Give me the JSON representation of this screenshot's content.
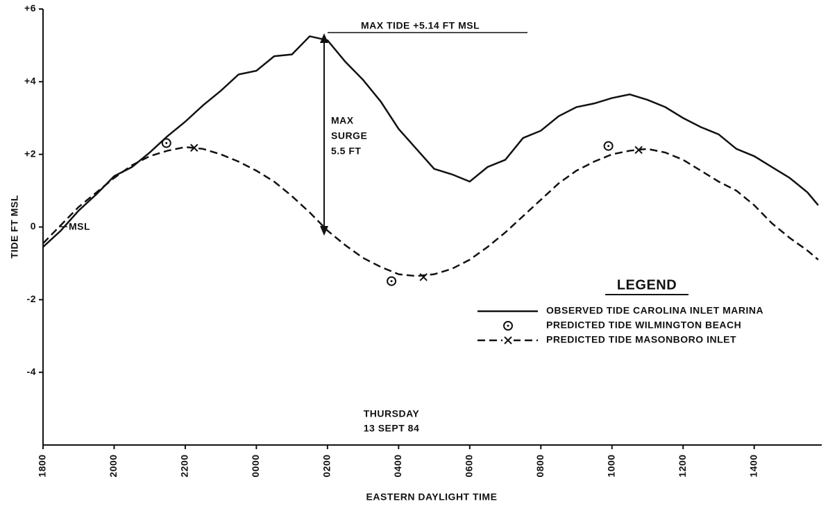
{
  "chart_data": {
    "type": "line",
    "xlabel": "EASTERN DAYLIGHT TIME",
    "ylabel": "TIDE FT MSL",
    "xlim": [
      0,
      21.9
    ],
    "ylim": [
      -6,
      6
    ],
    "xticks": [
      {
        "value": 0,
        "label": "1800"
      },
      {
        "value": 2,
        "label": "2000"
      },
      {
        "value": 4,
        "label": "2200"
      },
      {
        "value": 6,
        "label": "0000"
      },
      {
        "value": 8,
        "label": "0200"
      },
      {
        "value": 10,
        "label": "0400"
      },
      {
        "value": 12,
        "label": "0600"
      },
      {
        "value": 14,
        "label": "0800"
      },
      {
        "value": 16,
        "label": "1000"
      },
      {
        "value": 18,
        "label": "1200"
      },
      {
        "value": 20,
        "label": "1400"
      }
    ],
    "yticks": [
      -4,
      -2,
      0,
      {
        "value": 2,
        "label": "+2"
      },
      {
        "value": 4,
        "label": "+4"
      },
      {
        "value": 6,
        "label": "+6"
      }
    ],
    "annotations": {
      "max_tide": "MAX  TIDE +5.14 FT MSL",
      "surge_1": "MAX",
      "surge_2": "SURGE",
      "surge_3": "5.5 FT",
      "msl": "MSL",
      "day": "THURSDAY",
      "date": "13 SEPT 84"
    },
    "legend_title": "LEGEND",
    "series": [
      {
        "name": "OBSERVED TIDE CAROLINA INLET MARINA",
        "color": "#111",
        "style": "solid",
        "x": [
          0,
          0.5,
          1,
          1.5,
          2,
          2.5,
          3,
          3.5,
          4,
          4.5,
          5,
          5.5,
          6,
          6.5,
          7,
          7.5,
          8,
          8.5,
          9,
          9.5,
          10,
          10.5,
          11,
          11.5,
          12,
          12.5,
          13,
          13.5,
          14,
          14.5,
          15,
          15.5,
          16,
          16.5,
          17,
          17.5,
          18,
          18.5,
          19,
          19.5,
          20,
          20.5,
          21,
          21.5,
          21.8
        ],
        "values": [
          -0.55,
          -0.1,
          0.45,
          0.9,
          1.4,
          1.65,
          2.05,
          2.5,
          2.9,
          3.35,
          3.75,
          4.2,
          4.3,
          4.7,
          4.75,
          5.25,
          5.14,
          4.55,
          4.05,
          3.45,
          2.7,
          2.15,
          1.6,
          1.45,
          1.25,
          1.65,
          1.85,
          2.45,
          2.65,
          3.05,
          3.3,
          3.4,
          3.55,
          3.65,
          3.5,
          3.3,
          3.0,
          2.75,
          2.55,
          2.15,
          1.95,
          1.65,
          1.35,
          0.95,
          0.6
        ]
      },
      {
        "name": "PREDICTED TIDE WILMINGTON BEACH",
        "color": "#111",
        "style": "circles",
        "x": [
          3.47,
          9.8,
          15.9
        ],
        "values": [
          2.31,
          -1.49,
          2.23
        ]
      },
      {
        "name": "PREDICTED TIDE MASONBORO INLET",
        "color": "#111",
        "style": "dashed",
        "x": [
          0,
          0.5,
          1,
          1.5,
          2,
          2.5,
          3,
          3.5,
          4,
          4.5,
          5,
          5.5,
          6,
          6.5,
          7,
          7.5,
          8,
          8.5,
          9,
          9.5,
          10,
          10.5,
          11,
          11.5,
          12,
          12.5,
          13,
          13.5,
          14,
          14.5,
          15,
          15.5,
          16,
          16.5,
          17,
          17.5,
          18,
          18.5,
          19,
          19.5,
          20,
          20.5,
          21,
          21.5,
          21.8
        ],
        "values": [
          -0.45,
          0.05,
          0.55,
          0.95,
          1.35,
          1.7,
          1.95,
          2.1,
          2.2,
          2.15,
          2.0,
          1.8,
          1.55,
          1.25,
          0.85,
          0.4,
          -0.1,
          -0.5,
          -0.85,
          -1.1,
          -1.3,
          -1.35,
          -1.3,
          -1.15,
          -0.9,
          -0.55,
          -0.15,
          0.3,
          0.75,
          1.2,
          1.55,
          1.8,
          2.0,
          2.1,
          2.15,
          2.05,
          1.85,
          1.55,
          1.25,
          1.0,
          0.6,
          0.1,
          -0.3,
          -0.65,
          -0.9
        ],
        "markers": {
          "x": [
            4.25,
            10.7,
            16.75
          ],
          "values": [
            2.18,
            -1.38,
            2.12
          ]
        }
      }
    ]
  }
}
